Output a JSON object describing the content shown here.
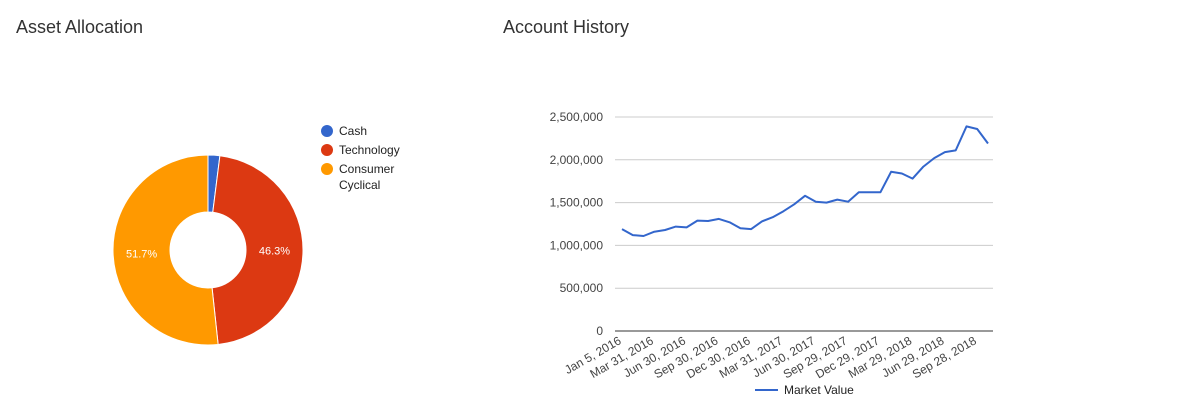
{
  "allocation": {
    "title": "Asset Allocation"
  },
  "history": {
    "title": "Account History"
  },
  "chart_data": [
    {
      "type": "pie",
      "title": "Asset Allocation",
      "donut": true,
      "legend_position": "right",
      "slices": [
        {
          "label": "Cash",
          "value": 2.0,
          "color": "#3366cc",
          "show_label": false,
          "data_label": ""
        },
        {
          "label": "Technology",
          "value": 46.3,
          "color": "#dc3912",
          "show_label": true,
          "data_label": "46.3%"
        },
        {
          "label": "Consumer Cyclical",
          "value": 51.7,
          "color": "#ff9900",
          "show_label": true,
          "data_label": "51.7%"
        }
      ],
      "legend_lines": [
        [
          "Cash"
        ],
        [
          "Technology"
        ],
        [
          "Consumer",
          "Cyclical"
        ]
      ]
    },
    {
      "type": "line",
      "title": "Account History",
      "xlabel": "",
      "ylabel": "",
      "ylim": [
        0,
        2500000
      ],
      "yticks": [
        0,
        500000,
        1000000,
        1500000,
        2000000,
        2500000
      ],
      "ytick_labels": [
        "0",
        "500,000",
        "1,000,000",
        "1,500,000",
        "2,000,000",
        "2,500,000"
      ],
      "grid": true,
      "legend_position": "bottom",
      "x_tick_labels": [
        "Jan 5, 2016",
        "Mar 31, 2016",
        "Jun 30, 2016",
        "Sep 30, 2016",
        "Dec 30, 2016",
        "Mar 31, 2017",
        "Jun 30, 2017",
        "Sep 29, 2017",
        "Dec 29, 2017",
        "Mar 29, 2018",
        "Jun 29, 2018",
        "Sep 28, 2018"
      ],
      "series": [
        {
          "name": "Market Value",
          "color": "#3366cc",
          "values": [
            1190000,
            1120000,
            1110000,
            1160000,
            1180000,
            1220000,
            1210000,
            1290000,
            1285000,
            1310000,
            1270000,
            1200000,
            1190000,
            1280000,
            1330000,
            1400000,
            1480000,
            1580000,
            1510000,
            1500000,
            1535000,
            1510000,
            1620000,
            1620000,
            1620000,
            1860000,
            1840000,
            1780000,
            1920000,
            2020000,
            2090000,
            2110000,
            2390000,
            2360000,
            2190000
          ]
        }
      ]
    }
  ]
}
